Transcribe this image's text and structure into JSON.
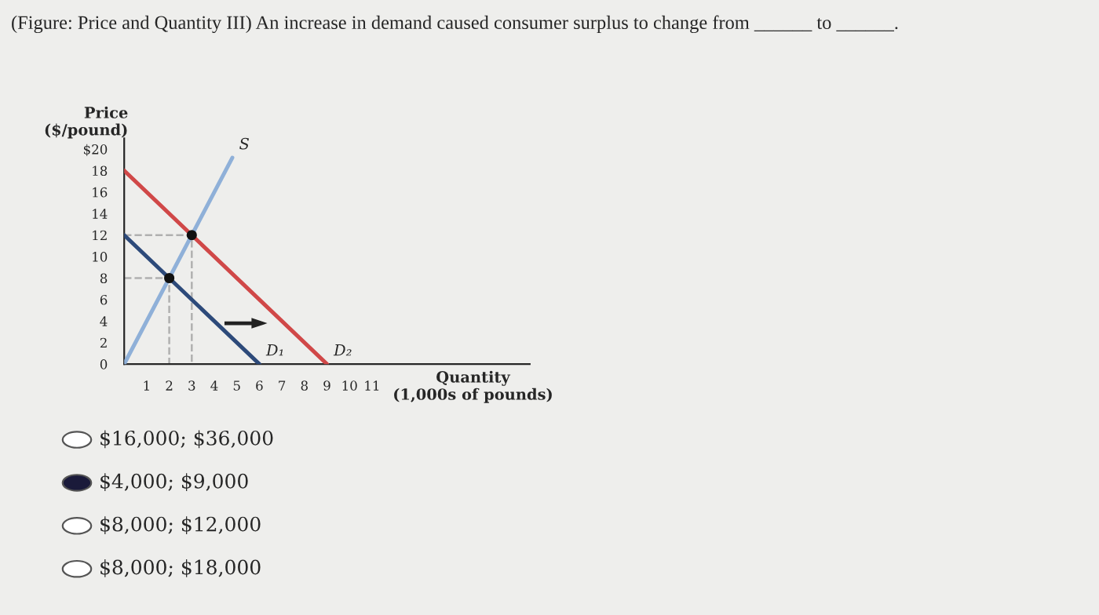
{
  "chart_data": {
    "type": "line",
    "title": "(Figure: Price and Quantity III) An increase in demand caused consumer surplus to change from ______ to ______.",
    "ylabel": "Price\n($/pound)",
    "xlabel": "Quantity\n(1,000s of pounds)",
    "annotations": [
      "$16,000; $36,000",
      "$4,000; $9,000",
      "$8,000; $12,000",
      "$8,000; $18,000"
    ],
    "series": [
      {
        "name": "S",
        "color": "#8fb0d8",
        "x": [
          0,
          4.8
        ],
        "values": [
          0,
          19.2
        ]
      },
      {
        "name": "D₁",
        "color": "#2d4a7a",
        "x": [
          0,
          6
        ],
        "values": [
          12,
          0
        ]
      },
      {
        "name": "D₂",
        "color": "#d04848",
        "x": [
          0,
          9
        ],
        "values": [
          18,
          0
        ]
      },
      {
        "color": "#b0b0b0",
        "line_style": "dashed",
        "x": [
          0,
          2,
          2
        ],
        "values": [
          8,
          8,
          0
        ]
      },
      {
        "color": "#b0b0b0",
        "line_style": "dashed",
        "x": [
          0,
          3,
          3
        ],
        "values": [
          12,
          12,
          0
        ]
      },
      {
        "type": "scatter",
        "marker": "circle",
        "color": "#111111",
        "x": [
          2,
          3
        ],
        "values": [
          8,
          12
        ]
      }
    ],
    "xlim": [
      0,
      18
    ],
    "ylim": [
      0,
      21
    ],
    "xticks": [
      1,
      2,
      3,
      4,
      5,
      6,
      7,
      8,
      9,
      10,
      11
    ],
    "yticks": [
      {
        "value": 0,
        "label": "0"
      },
      2,
      4,
      6,
      8,
      10,
      12,
      14,
      16,
      18,
      {
        "value": 20,
        "label": "$20"
      }
    ],
    "grid": false,
    "legend": false,
    "line_style": "solid"
  }
}
